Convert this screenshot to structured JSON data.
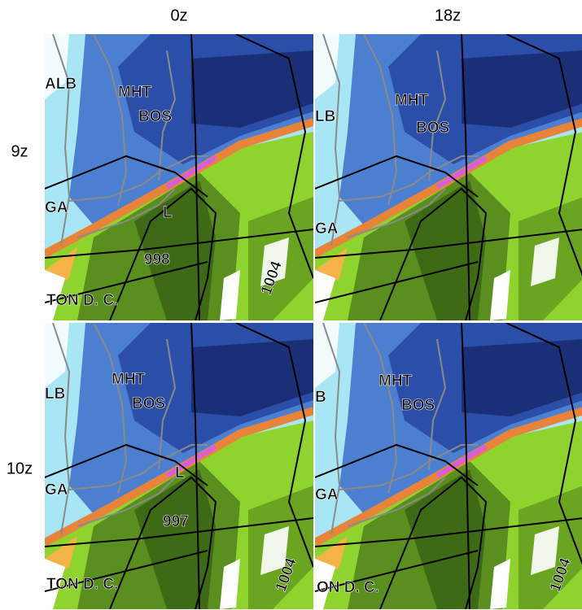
{
  "columns": [
    "0z",
    "18z"
  ],
  "rows": [
    "9z",
    "10z"
  ],
  "panels": [
    {
      "labels": [
        {
          "text": "MHT"
        },
        {
          "text": "BOS"
        },
        {
          "text": "ALB"
        },
        {
          "text": "GA"
        },
        {
          "text": "L"
        },
        {
          "text": "998"
        },
        {
          "text": "TON D. C."
        },
        {
          "text": "1004"
        }
      ]
    },
    {
      "labels": [
        {
          "text": "MHT"
        },
        {
          "text": "BOS"
        },
        {
          "text": "LB"
        },
        {
          "text": "GA"
        }
      ]
    },
    {
      "labels": [
        {
          "text": "MHT"
        },
        {
          "text": "BOS"
        },
        {
          "text": "LB"
        },
        {
          "text": "GA"
        },
        {
          "text": "L"
        },
        {
          "text": "997"
        },
        {
          "text": "TON D. C."
        },
        {
          "text": "1004"
        }
      ]
    },
    {
      "labels": [
        {
          "text": "MHT"
        },
        {
          "text": "BOS"
        },
        {
          "text": "B"
        },
        {
          "text": "GA"
        },
        {
          "text": "ON D. C."
        },
        {
          "text": "1004"
        }
      ]
    }
  ]
}
